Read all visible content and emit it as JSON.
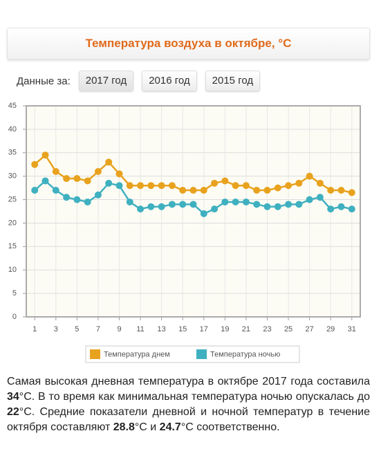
{
  "chart_data": {
    "type": "line",
    "title": "Температура воздуха в октябре, °C",
    "x": [
      1,
      2,
      3,
      4,
      5,
      6,
      7,
      8,
      9,
      10,
      11,
      12,
      13,
      14,
      15,
      16,
      17,
      18,
      19,
      20,
      21,
      22,
      23,
      24,
      25,
      26,
      27,
      28,
      29,
      30,
      31
    ],
    "series": [
      {
        "name": "Температура днем",
        "color": "#e8a21e",
        "values": [
          32.5,
          34.5,
          31,
          29.5,
          29.5,
          29,
          31,
          33,
          30.5,
          28,
          28,
          28,
          28,
          28,
          27,
          27,
          27,
          28.5,
          29,
          28,
          28,
          27,
          27,
          27.5,
          28,
          28.5,
          30,
          28.5,
          27,
          27,
          26.5
        ]
      },
      {
        "name": "Температура ночью",
        "color": "#3fb0c0",
        "values": [
          27,
          29,
          27,
          25.5,
          25,
          24.5,
          26,
          28.5,
          28,
          24.5,
          23,
          23.5,
          23.5,
          24,
          24,
          24,
          22,
          23,
          24.5,
          24.5,
          24.5,
          24,
          23.5,
          23.5,
          24,
          24,
          25,
          25.5,
          23,
          23.5,
          23
        ]
      }
    ],
    "xlim": [
      0.2,
      31.8
    ],
    "xticks": [
      1,
      3,
      5,
      7,
      9,
      11,
      13,
      15,
      17,
      19,
      21,
      23,
      25,
      27,
      29,
      31
    ],
    "ylim": [
      0,
      45
    ],
    "yticks": [
      0,
      5,
      10,
      15,
      20,
      25,
      30,
      35,
      40,
      45
    ],
    "grid": true,
    "legend": "bottom"
  },
  "filter": {
    "label": "Данные за:",
    "options": [
      "2017 год",
      "2016 год",
      "2015 год"
    ]
  },
  "summary": {
    "parts": [
      "Самая высокая дневная температура в октябре 2017 года составила ",
      "34",
      "°C. В то время как минимальная температура ночью опускалась до ",
      "22",
      "°C. Средние показатели дневной и ночной температур в течение октября составляют ",
      "28.8",
      "°C и ",
      "24.7",
      "°C соответственно."
    ]
  }
}
